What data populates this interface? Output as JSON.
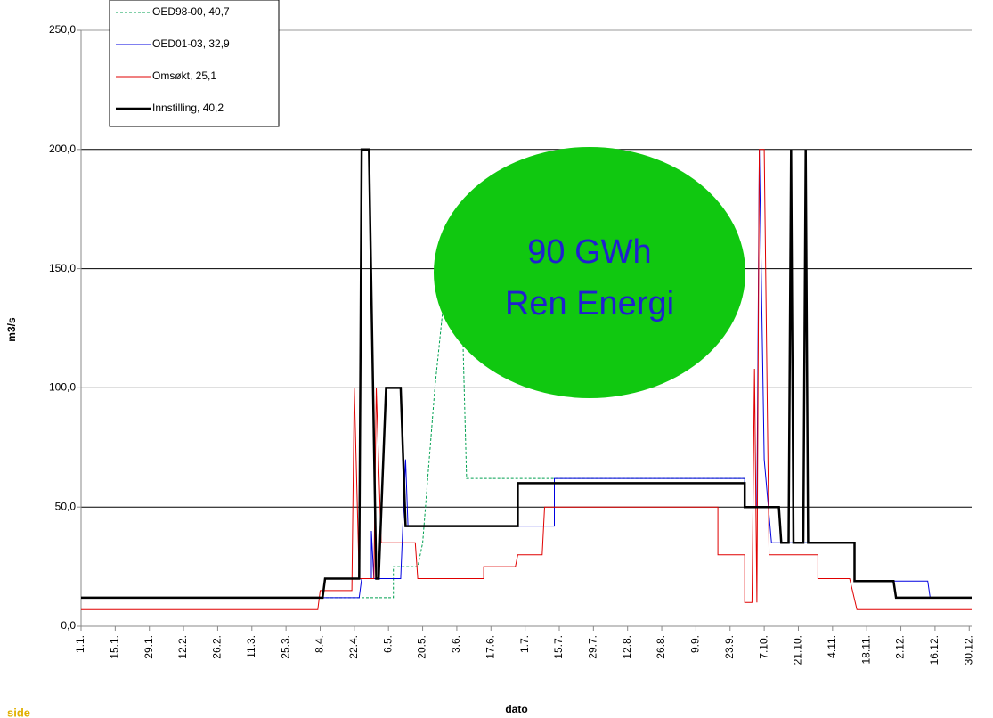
{
  "chart_data": {
    "type": "line",
    "y_label": "m3/s",
    "x_label": "dato",
    "annotations": [
      "90 GWh",
      "Ren Energi"
    ],
    "footer_text": "side",
    "ylim": [
      0,
      250
    ],
    "yticks": [
      {
        "value": 0,
        "label": "0,0"
      },
      {
        "value": 50,
        "label": "50,0"
      },
      {
        "value": 100,
        "label": "100,0"
      },
      {
        "value": 150,
        "label": "150,0"
      },
      {
        "value": 200,
        "label": "200,0"
      },
      {
        "value": 250,
        "label": "250,0"
      }
    ],
    "xlim": [
      0,
      365
    ],
    "xticks": [
      {
        "value": 0,
        "label": "1.1."
      },
      {
        "value": 14,
        "label": "15.1."
      },
      {
        "value": 28,
        "label": "29.1."
      },
      {
        "value": 42,
        "label": "12.2."
      },
      {
        "value": 56,
        "label": "26.2."
      },
      {
        "value": 70,
        "label": "11.3."
      },
      {
        "value": 84,
        "label": "25.3."
      },
      {
        "value": 98,
        "label": "8.4."
      },
      {
        "value": 112,
        "label": "22.4."
      },
      {
        "value": 126,
        "label": "6.5."
      },
      {
        "value": 140,
        "label": "20.5."
      },
      {
        "value": 154,
        "label": "3.6."
      },
      {
        "value": 168,
        "label": "17.6."
      },
      {
        "value": 182,
        "label": "1.7."
      },
      {
        "value": 196,
        "label": "15.7."
      },
      {
        "value": 210,
        "label": "29.7."
      },
      {
        "value": 224,
        "label": "12.8."
      },
      {
        "value": 238,
        "label": "26.8."
      },
      {
        "value": 252,
        "label": "9.9."
      },
      {
        "value": 266,
        "label": "23.9."
      },
      {
        "value": 280,
        "label": "7.10."
      },
      {
        "value": 294,
        "label": "21.10."
      },
      {
        "value": 308,
        "label": "4.11."
      },
      {
        "value": 322,
        "label": "18.11."
      },
      {
        "value": 336,
        "label": "2.12."
      },
      {
        "value": 350,
        "label": "16.12."
      },
      {
        "value": 364,
        "label": "30.12."
      }
    ],
    "grid": true,
    "series": [
      {
        "name": "OED98-00, 40,7",
        "color": "#00a050",
        "dash": true,
        "width": 1,
        "x": [
          0,
          128,
          128,
          138,
          140,
          145,
          149,
          156,
          158,
          272,
          272,
          286,
          287,
          317,
          317,
          333,
          334,
          365
        ],
        "values": [
          12,
          12,
          25,
          25,
          35,
          100,
          140,
          140,
          62,
          62,
          50,
          50,
          35,
          35,
          19,
          19,
          12,
          12
        ]
      },
      {
        "name": "OED01-03, 32,9",
        "color": "#0000e0",
        "dash": false,
        "width": 1,
        "x": [
          0,
          114,
          115,
          119,
          119,
          120,
          131,
          133,
          134,
          194,
          194,
          272,
          272,
          277,
          278,
          280,
          283,
          317,
          317,
          347,
          348,
          365
        ],
        "values": [
          12,
          12,
          20,
          20,
          40,
          20,
          20,
          70,
          42,
          42,
          62,
          62,
          50,
          50,
          200,
          70,
          35,
          35,
          19,
          19,
          12,
          12
        ]
      },
      {
        "name": "Omsøkt, 25,1",
        "color": "#e00000",
        "dash": false,
        "width": 1,
        "x": [
          0,
          97,
          98,
          111,
          112,
          114,
          120,
          121,
          123,
          137,
          138,
          165,
          165,
          178,
          179,
          189,
          190,
          261,
          261,
          272,
          272,
          275,
          276,
          277,
          278,
          280,
          282,
          302,
          302,
          315,
          318,
          365
        ],
        "values": [
          7,
          7,
          15,
          15,
          100,
          20,
          20,
          100,
          35,
          35,
          20,
          20,
          25,
          25,
          30,
          30,
          50,
          50,
          30,
          30,
          10,
          10,
          108,
          10,
          200,
          200,
          30,
          30,
          20,
          20,
          7,
          7
        ]
      },
      {
        "name": "Innstilling, 40,2",
        "color": "#000000",
        "dash": false,
        "width": 2.5,
        "x": [
          0,
          99,
          100,
          114,
          115,
          118,
          121,
          122,
          125,
          131,
          133,
          179,
          179,
          272,
          272,
          286,
          287,
          290,
          291,
          292,
          296,
          297,
          298,
          317,
          317,
          333,
          334,
          365
        ],
        "values": [
          12,
          12,
          20,
          20,
          200,
          200,
          20,
          20,
          100,
          100,
          42,
          42,
          60,
          60,
          50,
          50,
          35,
          35,
          200,
          35,
          35,
          200,
          35,
          35,
          19,
          19,
          12,
          12
        ]
      }
    ]
  }
}
